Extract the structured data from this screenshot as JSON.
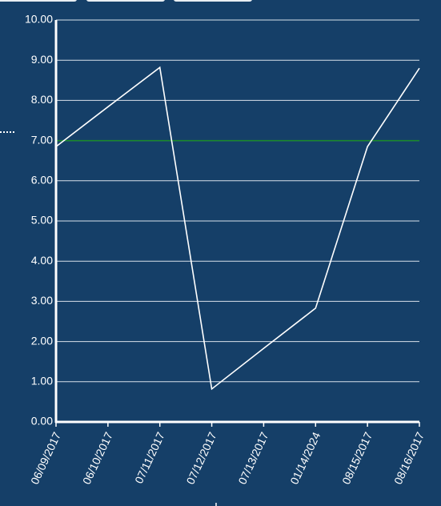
{
  "chart_data": {
    "type": "line",
    "categories": [
      "06/09/2017",
      "06/10/2017",
      "07/11/2017",
      "07/12/2017",
      "07/13/2017",
      "01/14/2024",
      "08/15/2017",
      "08/16/2017"
    ],
    "values": [
      6.85,
      7.84,
      8.82,
      0.82,
      1.83,
      2.83,
      6.85,
      8.8
    ],
    "color": "#ffffff",
    "threshold": 7,
    "threshold_color": "#1a8a2a",
    "ylim": [
      0,
      10
    ],
    "yticks": [
      {
        "value": 0,
        "label": "0.00"
      },
      {
        "value": 1,
        "label": "1.00"
      },
      {
        "value": 2,
        "label": "2.00"
      },
      {
        "value": 3,
        "label": "3.00"
      },
      {
        "value": 4,
        "label": "4.00"
      },
      {
        "value": 5,
        "label": "5.00"
      },
      {
        "value": 6,
        "label": "6.00"
      },
      {
        "value": 7,
        "label": "7.00"
      },
      {
        "value": 8,
        "label": "8.00"
      },
      {
        "value": 9,
        "label": "9.00"
      },
      {
        "value": 10,
        "label": "10.00"
      }
    ],
    "grid": true
  }
}
